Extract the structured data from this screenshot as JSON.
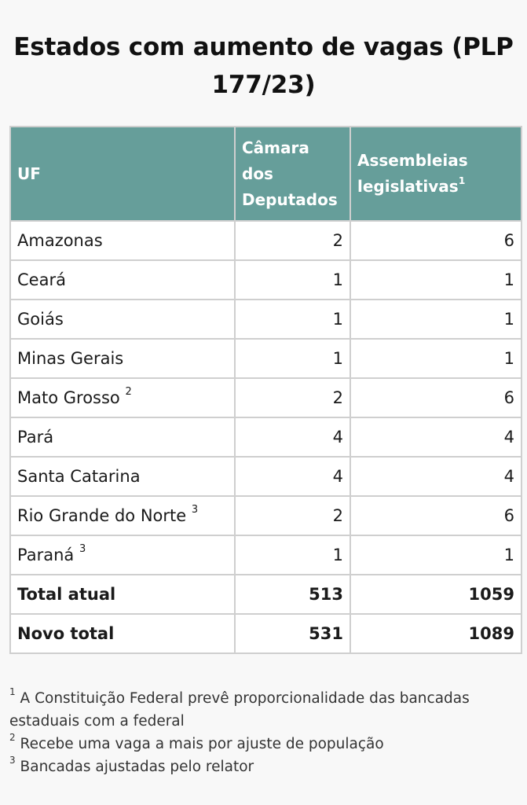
{
  "title": "Estados com aumento de vagas (PLP 177/23)",
  "table": {
    "headers": {
      "uf": "UF",
      "camara": "Câmara dos Deputados",
      "assembleias": "Assembleias legislativas",
      "assembleias_note": "1"
    },
    "rows": [
      {
        "uf": "Amazonas",
        "note": "",
        "camara": "2",
        "assembleias": "6"
      },
      {
        "uf": "Ceará",
        "note": "",
        "camara": "1",
        "assembleias": "1"
      },
      {
        "uf": "Goiás",
        "note": "",
        "camara": "1",
        "assembleias": "1"
      },
      {
        "uf": "Minas Gerais",
        "note": "",
        "camara": "1",
        "assembleias": "1"
      },
      {
        "uf": "Mato Grosso",
        "note": "2",
        "camara": "2",
        "assembleias": "6"
      },
      {
        "uf": "Pará",
        "note": "",
        "camara": "4",
        "assembleias": "4"
      },
      {
        "uf": "Santa Catarina",
        "note": "",
        "camara": "4",
        "assembleias": "4"
      },
      {
        "uf": "Rio Grande do Norte",
        "note": "3",
        "camara": "2",
        "assembleias": "6"
      },
      {
        "uf": "Paraná",
        "note": "3",
        "camara": "1",
        "assembleias": "1"
      }
    ],
    "totals": [
      {
        "label": "Total atual",
        "camara": "513",
        "assembleias": "1059"
      },
      {
        "label": "Novo total",
        "camara": "531",
        "assembleias": "1089"
      }
    ]
  },
  "footnotes": [
    {
      "mark": "1",
      "text": "A Constituição Federal prevê proporcionalidade das bancadas estaduais com a federal"
    },
    {
      "mark": "2",
      "text": "Recebe uma vaga a mais por ajuste de população"
    },
    {
      "mark": "3",
      "text": "Bancadas ajustadas pelo relator"
    }
  ],
  "colors": {
    "header_bg": "#669e9a",
    "header_text": "#ffffff",
    "page_bg": "#f8f8f8",
    "border": "#cfcfcf"
  }
}
